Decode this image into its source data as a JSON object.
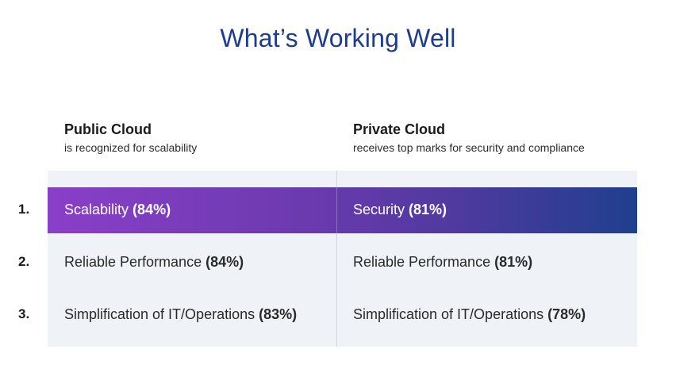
{
  "title": "What’s Working Well",
  "columns": [
    {
      "heading": "Public Cloud",
      "subheading": "is recognized for scalability"
    },
    {
      "heading": "Private Cloud",
      "subheading": "receives top marks for security and compliance"
    }
  ],
  "rows": [
    {
      "number": "1.",
      "cells": [
        {
          "label": "Scalability",
          "value": "(84%)"
        },
        {
          "label": "Security",
          "value": "(81%)"
        }
      ]
    },
    {
      "number": "2.",
      "cells": [
        {
          "label": "Reliable Performance",
          "value": "(84%)"
        },
        {
          "label": "Reliable Performance",
          "value": "(81%)"
        }
      ]
    },
    {
      "number": "3.",
      "cells": [
        {
          "label": "Simplification of IT/Operations",
          "value": "(83%)"
        },
        {
          "label": "Simplification of IT/Operations",
          "value": "(78%)"
        }
      ]
    }
  ],
  "colors": {
    "title": "#1f3c8c",
    "highlight_start": "#8a3fc8",
    "highlight_end": "#1f3f8e",
    "table_background": "#eff2f6"
  }
}
